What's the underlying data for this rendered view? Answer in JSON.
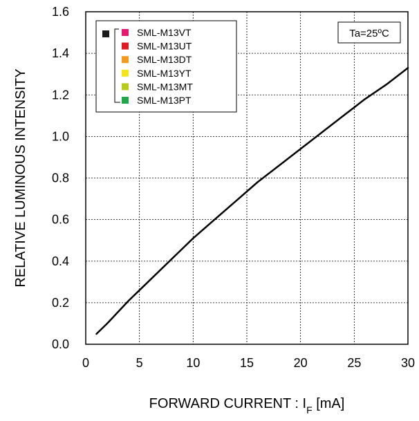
{
  "chart_data": {
    "type": "line",
    "xlabel_main": "FORWARD CURRENT : I",
    "xlabel_sub": "F",
    "xlabel_unit": " [mA]",
    "ylabel": "RELATIVE LUMINOUS INTENSITY",
    "xlim": [
      0,
      30
    ],
    "ylim": [
      0,
      1.6
    ],
    "x_ticks": [
      "0",
      "5",
      "10",
      "15",
      "20",
      "25",
      "30"
    ],
    "y_ticks": [
      "0.0",
      "0.2",
      "0.4",
      "0.6",
      "0.8",
      "1.0",
      "1.2",
      "1.4",
      "1.6"
    ],
    "grid": true,
    "condition": "Ta=25ºC",
    "legend_position": "top-left",
    "legend": {
      "swatch_color": "#1a1a1a",
      "items": [
        {
          "label": "SML-M13VT",
          "color": "#e6196e"
        },
        {
          "label": "SML-M13UT",
          "color": "#e01b24"
        },
        {
          "label": "SML-M13DT",
          "color": "#f39a1e"
        },
        {
          "label": "SML-M13YT",
          "color": "#f5e61a"
        },
        {
          "label": "SML-M13MT",
          "color": "#b8cc1a"
        },
        {
          "label": "SML-M13PT",
          "color": "#1fa84a"
        }
      ]
    },
    "series": [
      {
        "color": "#000000",
        "x": [
          1,
          2,
          3,
          4,
          5,
          6,
          8,
          10,
          12,
          14,
          16,
          18,
          20,
          22,
          24,
          26,
          28,
          30
        ],
        "y": [
          0.05,
          0.1,
          0.155,
          0.21,
          0.26,
          0.31,
          0.41,
          0.51,
          0.6,
          0.69,
          0.78,
          0.86,
          0.94,
          1.02,
          1.1,
          1.18,
          1.25,
          1.33
        ]
      }
    ]
  }
}
